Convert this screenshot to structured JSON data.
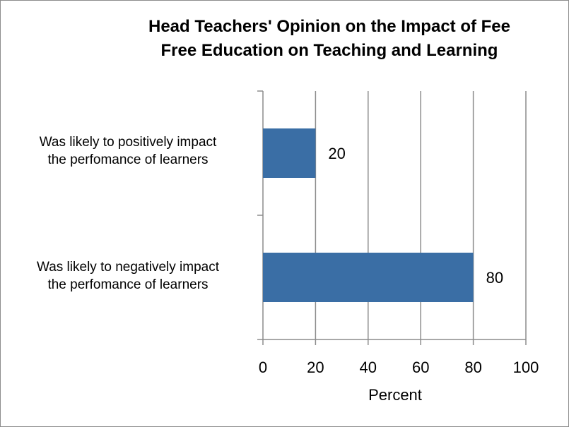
{
  "chart_data": {
    "type": "bar",
    "orientation": "horizontal",
    "title_lines": [
      "Head Teachers' Opinion on the Impact of Fee",
      "Free Education on Teaching and Learning"
    ],
    "categories": [
      [
        "Was likely to positively impact",
        "the perfomance of learners"
      ],
      [
        "Was likely to negatively  impact",
        "the perfomance of learners"
      ]
    ],
    "values": [
      20,
      80
    ],
    "data_labels": [
      "20",
      "80"
    ],
    "xlabel": "Percent",
    "ylabel": "",
    "xlim": [
      0,
      100
    ],
    "x_ticks": [
      "0",
      "20",
      "40",
      "60",
      "80",
      "100"
    ],
    "grid": "vertical",
    "bar_color": "#3a6ea5",
    "gridline_color": "#8c8c8c"
  }
}
